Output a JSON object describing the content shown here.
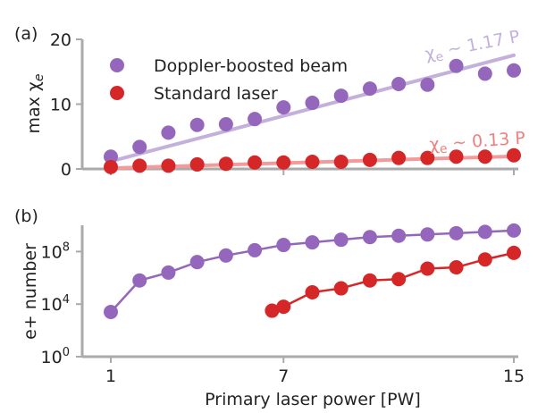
{
  "chart_data": [
    {
      "panel_label": "(a)",
      "type": "scatter",
      "ylabel": "max χₑ",
      "ylim": [
        0,
        20
      ],
      "y_ticks": [
        0,
        10,
        20
      ],
      "x_ticks": [],
      "xlim": [
        0.6,
        15.3
      ],
      "legend_position": "top-left",
      "series": [
        {
          "name": "Doppler-boosted beam",
          "color": "#9467bd",
          "x": [
            1,
            2,
            3,
            4,
            5,
            6,
            7,
            8,
            9,
            10,
            11,
            12,
            13,
            14,
            15
          ],
          "y": [
            1.9,
            3.4,
            5.6,
            6.8,
            6.9,
            7.7,
            9.5,
            10.2,
            11.3,
            12.4,
            13.1,
            13.0,
            15.9,
            14.7,
            15.2
          ]
        },
        {
          "name": "Standard laser",
          "color": "#d62728",
          "x": [
            1,
            2,
            3,
            4,
            5,
            6,
            7,
            8,
            9,
            10,
            11,
            12,
            13,
            14,
            15
          ],
          "y": [
            0.3,
            0.5,
            0.5,
            0.7,
            0.8,
            1.0,
            1.0,
            1.1,
            1.1,
            1.4,
            1.7,
            1.7,
            1.9,
            1.9,
            2.1
          ]
        }
      ],
      "fits": [
        {
          "label": "χₑ ~ 1.17 P",
          "slope": 1.17,
          "color": "#c3b1dc"
        },
        {
          "label": "χₑ ~ 0.13 P",
          "slope": 0.13,
          "color": "#f59a9a"
        }
      ]
    },
    {
      "panel_label": "(b)",
      "type": "line",
      "ylabel": "e+ number",
      "xlabel": "Primary laser power [PW]",
      "y_scale": "log",
      "ylim_log10": [
        0,
        10
      ],
      "y_ticks": [
        {
          "base": "10",
          "exp": "0",
          "log10": 0
        },
        {
          "base": "10",
          "exp": "4",
          "log10": 4
        },
        {
          "base": "10",
          "exp": "8",
          "log10": 8
        }
      ],
      "xlim": [
        0.6,
        15.3
      ],
      "x_ticks": [
        1,
        7,
        15
      ],
      "series": [
        {
          "color": "#9467bd",
          "x": [
            1,
            2,
            3,
            4,
            5,
            6,
            7,
            8,
            9,
            10,
            11,
            12,
            13,
            14,
            15
          ],
          "log10_y": [
            3.4,
            5.8,
            6.4,
            7.2,
            7.7,
            8.1,
            8.5,
            8.7,
            8.9,
            9.1,
            9.2,
            9.3,
            9.4,
            9.5,
            9.6
          ]
        },
        {
          "color": "#d62728",
          "x": [
            6.6,
            7,
            8,
            9,
            10,
            11,
            12,
            13,
            14,
            15
          ],
          "log10_y": [
            3.5,
            3.8,
            4.9,
            5.2,
            5.8,
            5.9,
            6.7,
            6.8,
            7.4,
            7.9
          ]
        }
      ]
    }
  ]
}
